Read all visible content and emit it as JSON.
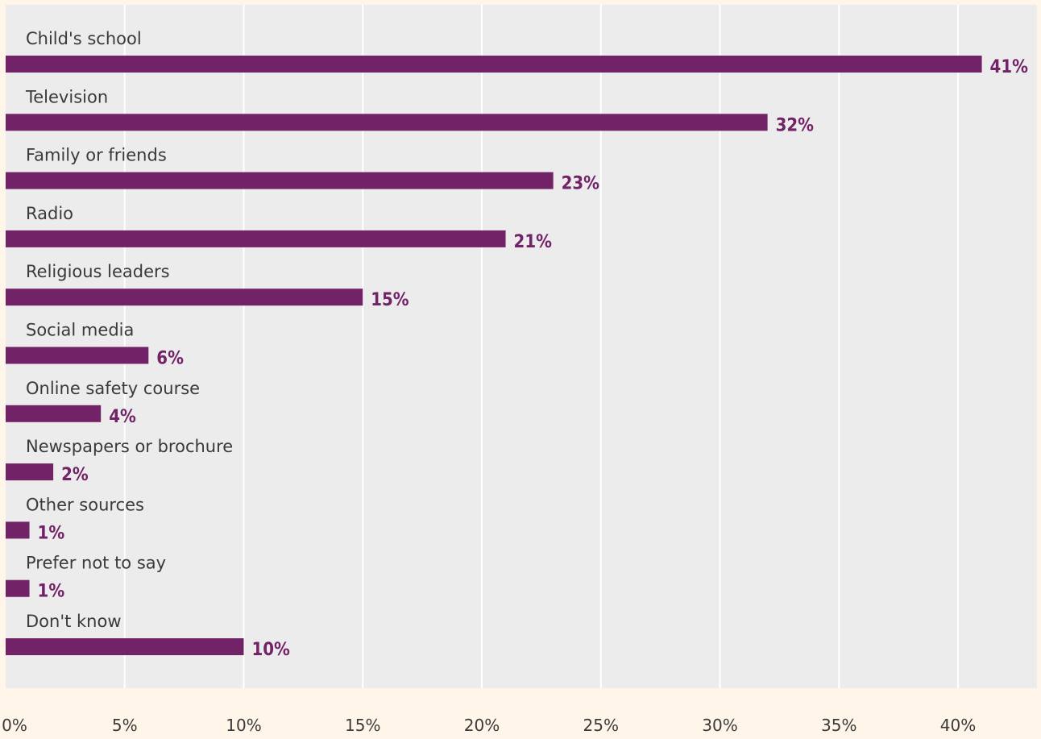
{
  "chart_data": {
    "type": "bar",
    "orientation": "horizontal",
    "categories": [
      "Child's school",
      "Television",
      "Family or friends",
      "Radio",
      "Religious leaders",
      "Social media",
      "Online safety course",
      "Newspapers or brochure",
      "Other sources",
      "Prefer not to say",
      "Don't know"
    ],
    "values": [
      41,
      32,
      23,
      21,
      15,
      6,
      4,
      2,
      1,
      1,
      10
    ],
    "value_labels": [
      "41%",
      "32%",
      "23%",
      "21%",
      "15%",
      "6%",
      "4%",
      "2%",
      "1%",
      "1%",
      "10%"
    ],
    "x_ticks": [
      0,
      5,
      10,
      15,
      20,
      25,
      30,
      35,
      40
    ],
    "x_tick_labels": [
      "0%",
      "5%",
      "10%",
      "15%",
      "20%",
      "25%",
      "30%",
      "35%",
      "40%"
    ],
    "xlim": [
      0,
      43
    ],
    "grid": true,
    "title": "",
    "xlabel": "",
    "ylabel": ""
  },
  "colors": {
    "bar": "#722267",
    "value_label": "#722267",
    "plot_background": "#ececec",
    "page_background": "#fff6e9",
    "gridline": "#ffffff"
  }
}
